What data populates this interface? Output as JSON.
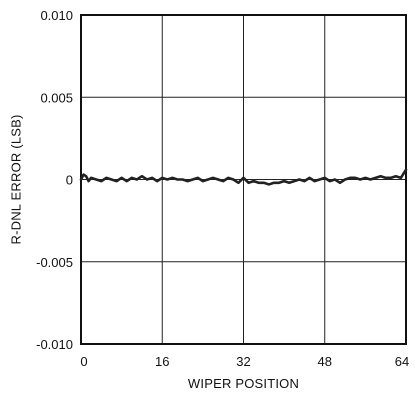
{
  "chart_data": {
    "type": "line",
    "xlabel": "WIPER POSITION",
    "ylabel": "R-DNL ERROR (LSB)",
    "xlim": [
      0,
      64
    ],
    "ylim": [
      -0.01,
      0.01
    ],
    "x_ticks": [
      0,
      16,
      32,
      48,
      64
    ],
    "y_ticks": [
      0.01,
      0.005,
      0,
      -0.005,
      -0.01
    ],
    "x_tick_labels": [
      "0",
      "16",
      "32",
      "48",
      "64"
    ],
    "y_tick_labels": [
      "0.010",
      "0.005",
      "0",
      "-0.005",
      "-0.010"
    ],
    "grid": true,
    "colors": {
      "line": "#222222",
      "grid": "#222222",
      "frame": "#111111"
    },
    "series": [
      {
        "x": [
          0,
          0.5,
          1,
          1.5,
          2,
          3,
          4,
          5,
          6,
          7,
          8,
          9,
          10,
          11,
          12,
          13,
          14,
          15,
          16,
          17,
          18,
          19,
          20,
          21,
          22,
          23,
          24,
          25,
          26,
          27,
          28,
          29,
          30,
          31,
          32,
          33,
          34,
          35,
          36,
          37,
          38,
          39,
          40,
          41,
          42,
          43,
          44,
          45,
          46,
          47,
          48,
          49,
          50,
          51,
          52,
          53,
          54,
          55,
          56,
          57,
          58,
          59,
          60,
          61,
          62,
          63,
          64
        ],
        "values": [
          0.0,
          0.0003,
          0.0002,
          -0.0001,
          0.0001,
          0.0,
          -0.0001,
          0.0001,
          0.0,
          -0.0001,
          0.0001,
          -0.0001,
          0.0001,
          0.0,
          0.0002,
          0.0,
          0.0001,
          -0.0001,
          0.0001,
          0.0,
          0.0001,
          0.0,
          0.0,
          -0.0001,
          0.0,
          0.0001,
          -0.0001,
          0.0,
          0.0001,
          0.0,
          -0.0001,
          0.0001,
          0.0,
          -0.0002,
          0.0001,
          -0.0002,
          -0.0001,
          -0.0002,
          -0.0002,
          -0.0003,
          -0.0002,
          -0.0002,
          -0.0001,
          -0.0002,
          -0.0001,
          0.0,
          -0.0001,
          0.0001,
          -0.0001,
          0.0,
          0.0001,
          -0.0001,
          0.0,
          -0.0002,
          0.0,
          0.0001,
          0.0001,
          0.0,
          0.0001,
          0.0,
          0.0001,
          0.0002,
          0.0001,
          0.0001,
          0.0002,
          0.0001,
          0.0006
        ]
      }
    ]
  }
}
